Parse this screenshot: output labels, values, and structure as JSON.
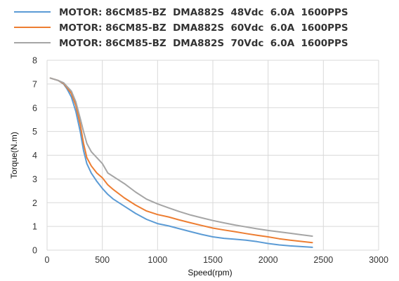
{
  "chart_data": {
    "type": "line",
    "title": "",
    "xlabel": "Speed(rpm)",
    "ylabel": "Torque(N.m)",
    "xlim": [
      0,
      3000
    ],
    "ylim": [
      0,
      8
    ],
    "xticks": [
      0,
      500,
      1000,
      1500,
      2000,
      2500,
      3000
    ],
    "yticks": [
      0,
      1,
      2,
      3,
      4,
      5,
      6,
      7,
      8
    ],
    "grid": true,
    "legend_position": "top-left",
    "series": [
      {
        "name": "MOTOR: 86CM85-BZ  DMA882S  48Vdc  6.0A  1600PPS",
        "color": "#5b9bd5",
        "x": [
          30,
          100,
          150,
          180,
          220,
          260,
          300,
          330,
          360,
          400,
          450,
          500,
          550,
          600,
          700,
          800,
          900,
          1000,
          1100,
          1200,
          1300,
          1400,
          1500,
          1600,
          1700,
          1800,
          1900,
          2000,
          2100,
          2200,
          2300,
          2400
        ],
        "y": [
          7.25,
          7.15,
          7.0,
          6.8,
          6.45,
          5.85,
          5.0,
          4.2,
          3.65,
          3.25,
          2.9,
          2.6,
          2.35,
          2.15,
          1.85,
          1.55,
          1.3,
          1.12,
          1.02,
          0.9,
          0.78,
          0.66,
          0.56,
          0.5,
          0.46,
          0.42,
          0.36,
          0.28,
          0.22,
          0.18,
          0.15,
          0.12
        ]
      },
      {
        "name": "MOTOR: 86CM85-BZ  DMA882S  60Vdc  6.0A  1600PPS",
        "color": "#ed7d31",
        "x": [
          30,
          100,
          150,
          180,
          220,
          260,
          300,
          330,
          360,
          400,
          450,
          500,
          550,
          600,
          700,
          800,
          900,
          1000,
          1100,
          1200,
          1300,
          1400,
          1500,
          1600,
          1700,
          1800,
          1900,
          2000,
          2100,
          2200,
          2300,
          2400
        ],
        "y": [
          7.25,
          7.15,
          7.02,
          6.85,
          6.6,
          6.1,
          5.3,
          4.5,
          3.9,
          3.55,
          3.25,
          3.05,
          2.75,
          2.55,
          2.2,
          1.9,
          1.65,
          1.5,
          1.4,
          1.27,
          1.15,
          1.04,
          0.93,
          0.85,
          0.78,
          0.7,
          0.63,
          0.56,
          0.48,
          0.42,
          0.37,
          0.32
        ]
      },
      {
        "name": "MOTOR: 86CM85-BZ  DMA882S  70Vdc  6.0A  1600PPS",
        "color": "#a5a5a5",
        "x": [
          30,
          100,
          150,
          180,
          220,
          260,
          300,
          330,
          360,
          400,
          450,
          500,
          550,
          600,
          700,
          800,
          900,
          1000,
          1100,
          1200,
          1300,
          1400,
          1500,
          1600,
          1700,
          1800,
          1900,
          2000,
          2100,
          2200,
          2300,
          2400
        ],
        "y": [
          7.25,
          7.15,
          7.05,
          6.9,
          6.7,
          6.25,
          5.55,
          5.0,
          4.5,
          4.15,
          3.9,
          3.65,
          3.25,
          3.1,
          2.8,
          2.45,
          2.15,
          1.95,
          1.78,
          1.62,
          1.48,
          1.36,
          1.25,
          1.15,
          1.06,
          0.98,
          0.9,
          0.83,
          0.77,
          0.71,
          0.65,
          0.59
        ]
      }
    ]
  }
}
